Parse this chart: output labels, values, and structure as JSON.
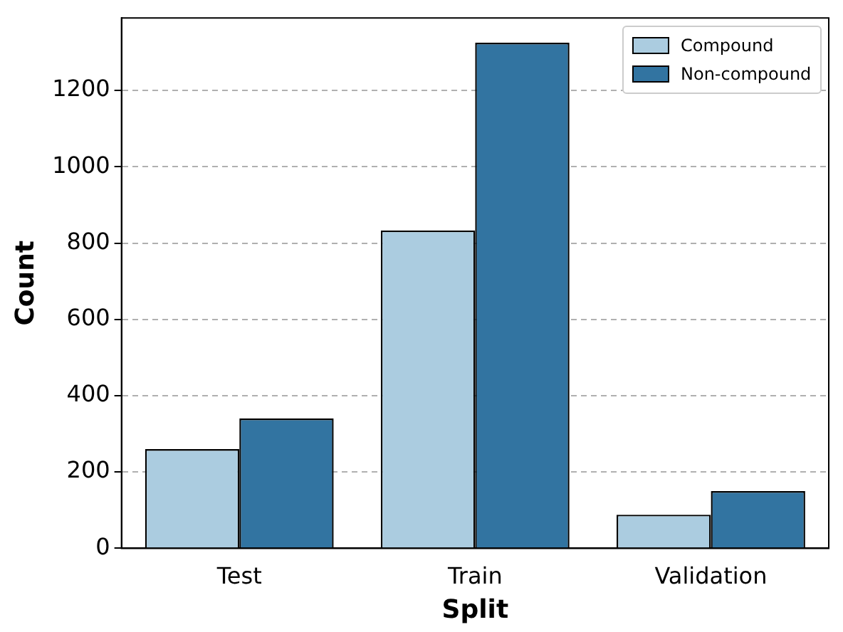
{
  "chart_data": {
    "type": "bar",
    "xlabel": "Split",
    "ylabel": "Count",
    "categories": [
      "Test",
      "Train",
      "Validation"
    ],
    "series": [
      {
        "name": "Compound",
        "color": "#abcce0",
        "values": [
          260,
          833,
          88
        ]
      },
      {
        "name": "Non-compound",
        "color": "#3274a1",
        "values": [
          340,
          1325,
          150
        ]
      }
    ],
    "ylim": [
      0,
      1390
    ],
    "yticks": [
      0,
      200,
      400,
      600,
      800,
      1000,
      1200
    ],
    "grid": "y",
    "legend": "top right"
  }
}
